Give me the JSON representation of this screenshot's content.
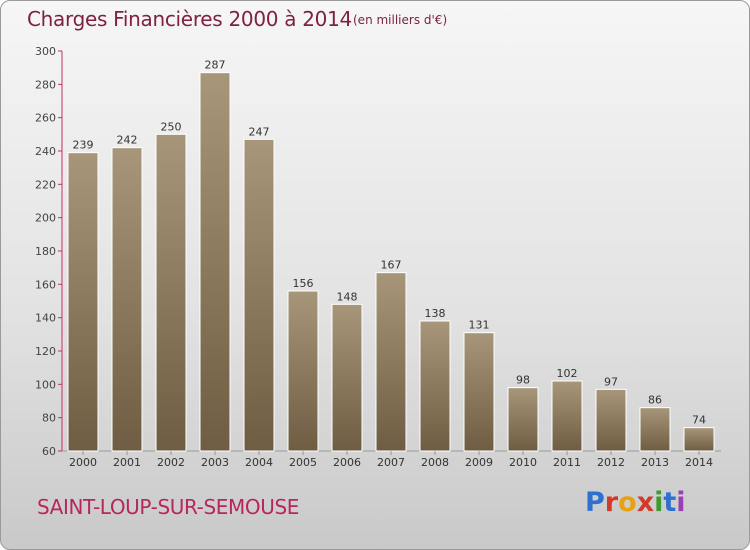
{
  "header": {
    "title": "Charges Financières 2000 à 2014",
    "subtitle": "(en milliers d'€)"
  },
  "footer": {
    "city": "SAINT-LOUP-SUR-SEMOUSE",
    "logo": [
      "P",
      "r",
      "o",
      "x",
      "i",
      "t",
      "i"
    ],
    "logo_colors": [
      "#2f6fd0",
      "#d23a2a",
      "#e8a112",
      "#d23a2a",
      "#3a9c2d",
      "#2f6fd0",
      "#9a3fb8"
    ]
  },
  "chart_data": {
    "type": "bar",
    "categories": [
      "2000",
      "2001",
      "2002",
      "2003",
      "2004",
      "2005",
      "2006",
      "2007",
      "2008",
      "2009",
      "2010",
      "2011",
      "2012",
      "2013",
      "2014"
    ],
    "values": [
      239,
      242,
      250,
      287,
      247,
      156,
      148,
      167,
      138,
      131,
      98,
      102,
      97,
      86,
      74
    ],
    "ylim": [
      60,
      300
    ],
    "yticks": [
      60,
      80,
      100,
      120,
      140,
      160,
      180,
      200,
      220,
      240,
      260,
      280,
      300
    ],
    "grid": false,
    "bar_color": "#8a7658",
    "axis_color": "#c0306a"
  }
}
